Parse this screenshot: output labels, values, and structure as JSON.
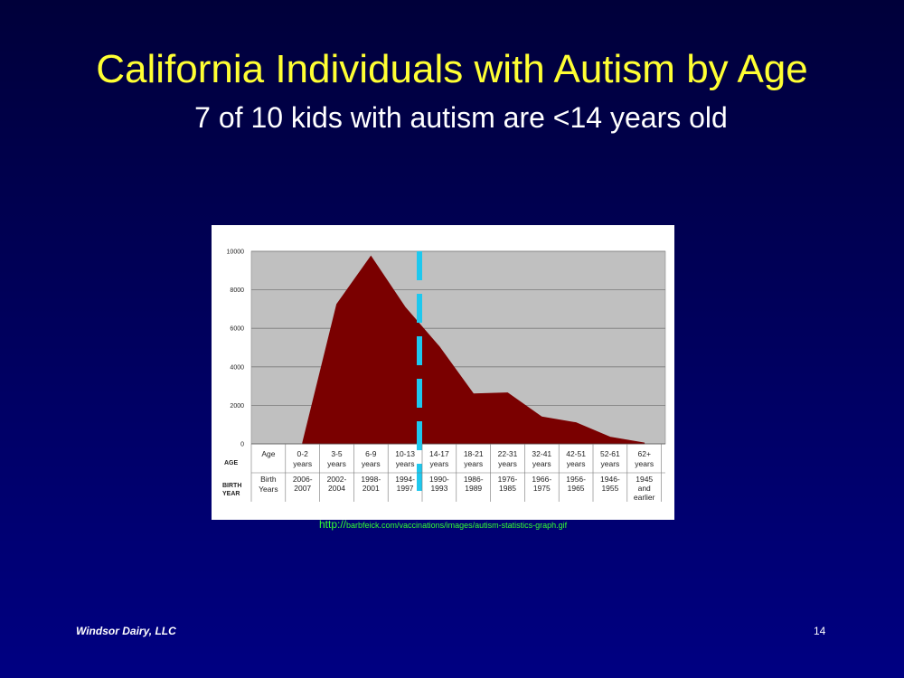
{
  "slide": {
    "title": "California Individuals with Autism by Age",
    "subtitle": "7 of 10 kids with autism are <14 years old",
    "source_prefix": "http://",
    "source_path": "barbfeick.com/vaccinations/images/autism-statistics-graph.gif",
    "footer": "Windsor Dairy, LLC",
    "page_number": "14"
  },
  "chart_data": {
    "type": "area",
    "title": "",
    "xlabel": "",
    "ylabel": "",
    "ylim": [
      0,
      10000
    ],
    "yticks": [
      "0",
      "2000",
      "4000",
      "6000",
      "8000",
      "10000"
    ],
    "grid": true,
    "row_labels": {
      "age": [
        "AGE"
      ],
      "birth_year": [
        "BIRTH",
        "YEAR"
      ]
    },
    "header_column": {
      "age": [
        "Age"
      ],
      "birth": [
        "Birth",
        "Years"
      ]
    },
    "categories": [
      {
        "age": [
          "0-2",
          "years"
        ],
        "birth": [
          "2006-",
          "2007"
        ]
      },
      {
        "age": [
          "3-5",
          "years"
        ],
        "birth": [
          "2002-",
          "2004"
        ]
      },
      {
        "age": [
          "6-9",
          "years"
        ],
        "birth": [
          "1998-",
          "2001"
        ]
      },
      {
        "age": [
          "10-13",
          "years"
        ],
        "birth": [
          "1994-",
          "1997"
        ]
      },
      {
        "age": [
          "14-17",
          "years"
        ],
        "birth": [
          "1990-",
          "1993"
        ]
      },
      {
        "age": [
          "18-21",
          "years"
        ],
        "birth": [
          "1986-",
          "1989"
        ]
      },
      {
        "age": [
          "22-31",
          "years"
        ],
        "birth": [
          "1976-",
          "1985"
        ]
      },
      {
        "age": [
          "32-41",
          "years"
        ],
        "birth": [
          "1966-",
          "1975"
        ]
      },
      {
        "age": [
          "42-51",
          "years"
        ],
        "birth": [
          "1956-",
          "1965"
        ]
      },
      {
        "age": [
          "52-61",
          "years"
        ],
        "birth": [
          "1946-",
          "1955"
        ]
      },
      {
        "age": [
          "62+",
          "years"
        ],
        "birth": [
          "1945",
          "and",
          "earlier"
        ]
      }
    ],
    "series": [
      {
        "values": [
          50,
          7250,
          9750,
          7100,
          5050,
          2600,
          2650,
          1400,
          1100,
          350,
          50
        ],
        "color": "#7a0000"
      }
    ],
    "marker_line": {
      "between": [
        "10-13",
        "14-17"
      ],
      "color": "#1ec8ee",
      "style": "dashed"
    },
    "plot_background": "#c0c0c0"
  }
}
